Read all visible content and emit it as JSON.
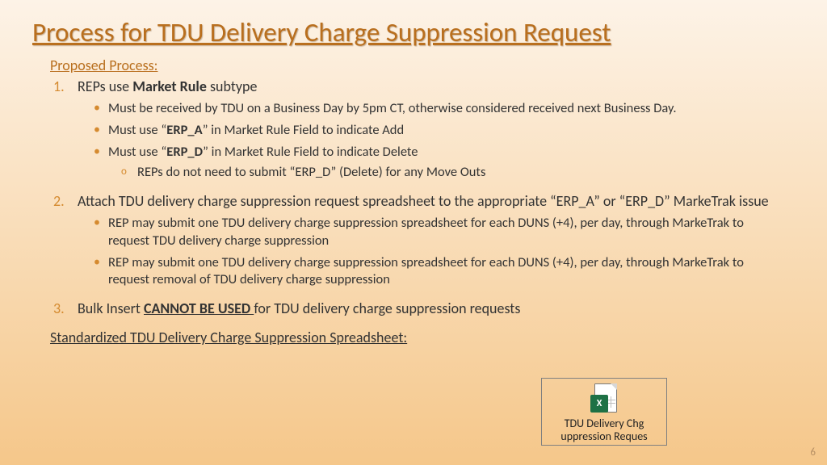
{
  "title": "Process for TDU Delivery Charge Suppression Request",
  "subtitle": "Proposed Process:",
  "items": [
    {
      "text_pre": "REPs use ",
      "text_bold": "Market Rule",
      "text_post": " subtype",
      "sub": [
        {
          "pre": "Must be received by TDU on a Business Day by 5pm CT, otherwise considered received next Business Day.",
          "bold": "",
          "post": ""
        },
        {
          "pre": "Must use “",
          "bold": "ERP_A",
          "post": "” in Market Rule Field to indicate Add"
        },
        {
          "pre": "Must use “",
          "bold": "ERP_D",
          "post": "” in Market Rule Field to indicate Delete",
          "sub": [
            {
              "text": "REPs do not need to submit “ERP_D” (Delete) for any Move Outs"
            }
          ]
        }
      ]
    },
    {
      "text_pre": "Attach TDU delivery charge suppression request spreadsheet to the appropriate “ERP_A” or “ERP_D” MarkeTrak issue",
      "text_bold": "",
      "text_post": "",
      "sub": [
        {
          "pre": "REP may submit one TDU delivery charge suppression spreadsheet for each DUNS (+4), per day, through MarkeTrak to request TDU delivery charge suppression",
          "bold": "",
          "post": ""
        },
        {
          "pre": "REP may submit one TDU delivery charge suppression spreadsheet for each DUNS (+4), per day, through MarkeTrak to request removal of TDU delivery charge suppression",
          "bold": "",
          "post": ""
        }
      ]
    },
    {
      "text_pre": "Bulk Insert ",
      "text_bold_ul": "CANNOT BE USED ",
      "text_post": "for TDU delivery charge suppression requests"
    }
  ],
  "footer_label": "Standardized TDU Delivery Charge Suppression Spreadsheet:",
  "embed": {
    "caption_line1": "TDU Delivery Chg",
    "caption_line2": "uppression Reques",
    "badge": "X"
  },
  "page_number": "6",
  "colors": {
    "accent": "#b96f1e",
    "bullet": "#d58a2f",
    "text": "#333333",
    "grad_top": "#fdf3e7",
    "grad_bottom": "#f5c78a",
    "excel_green": "#1e7145"
  }
}
